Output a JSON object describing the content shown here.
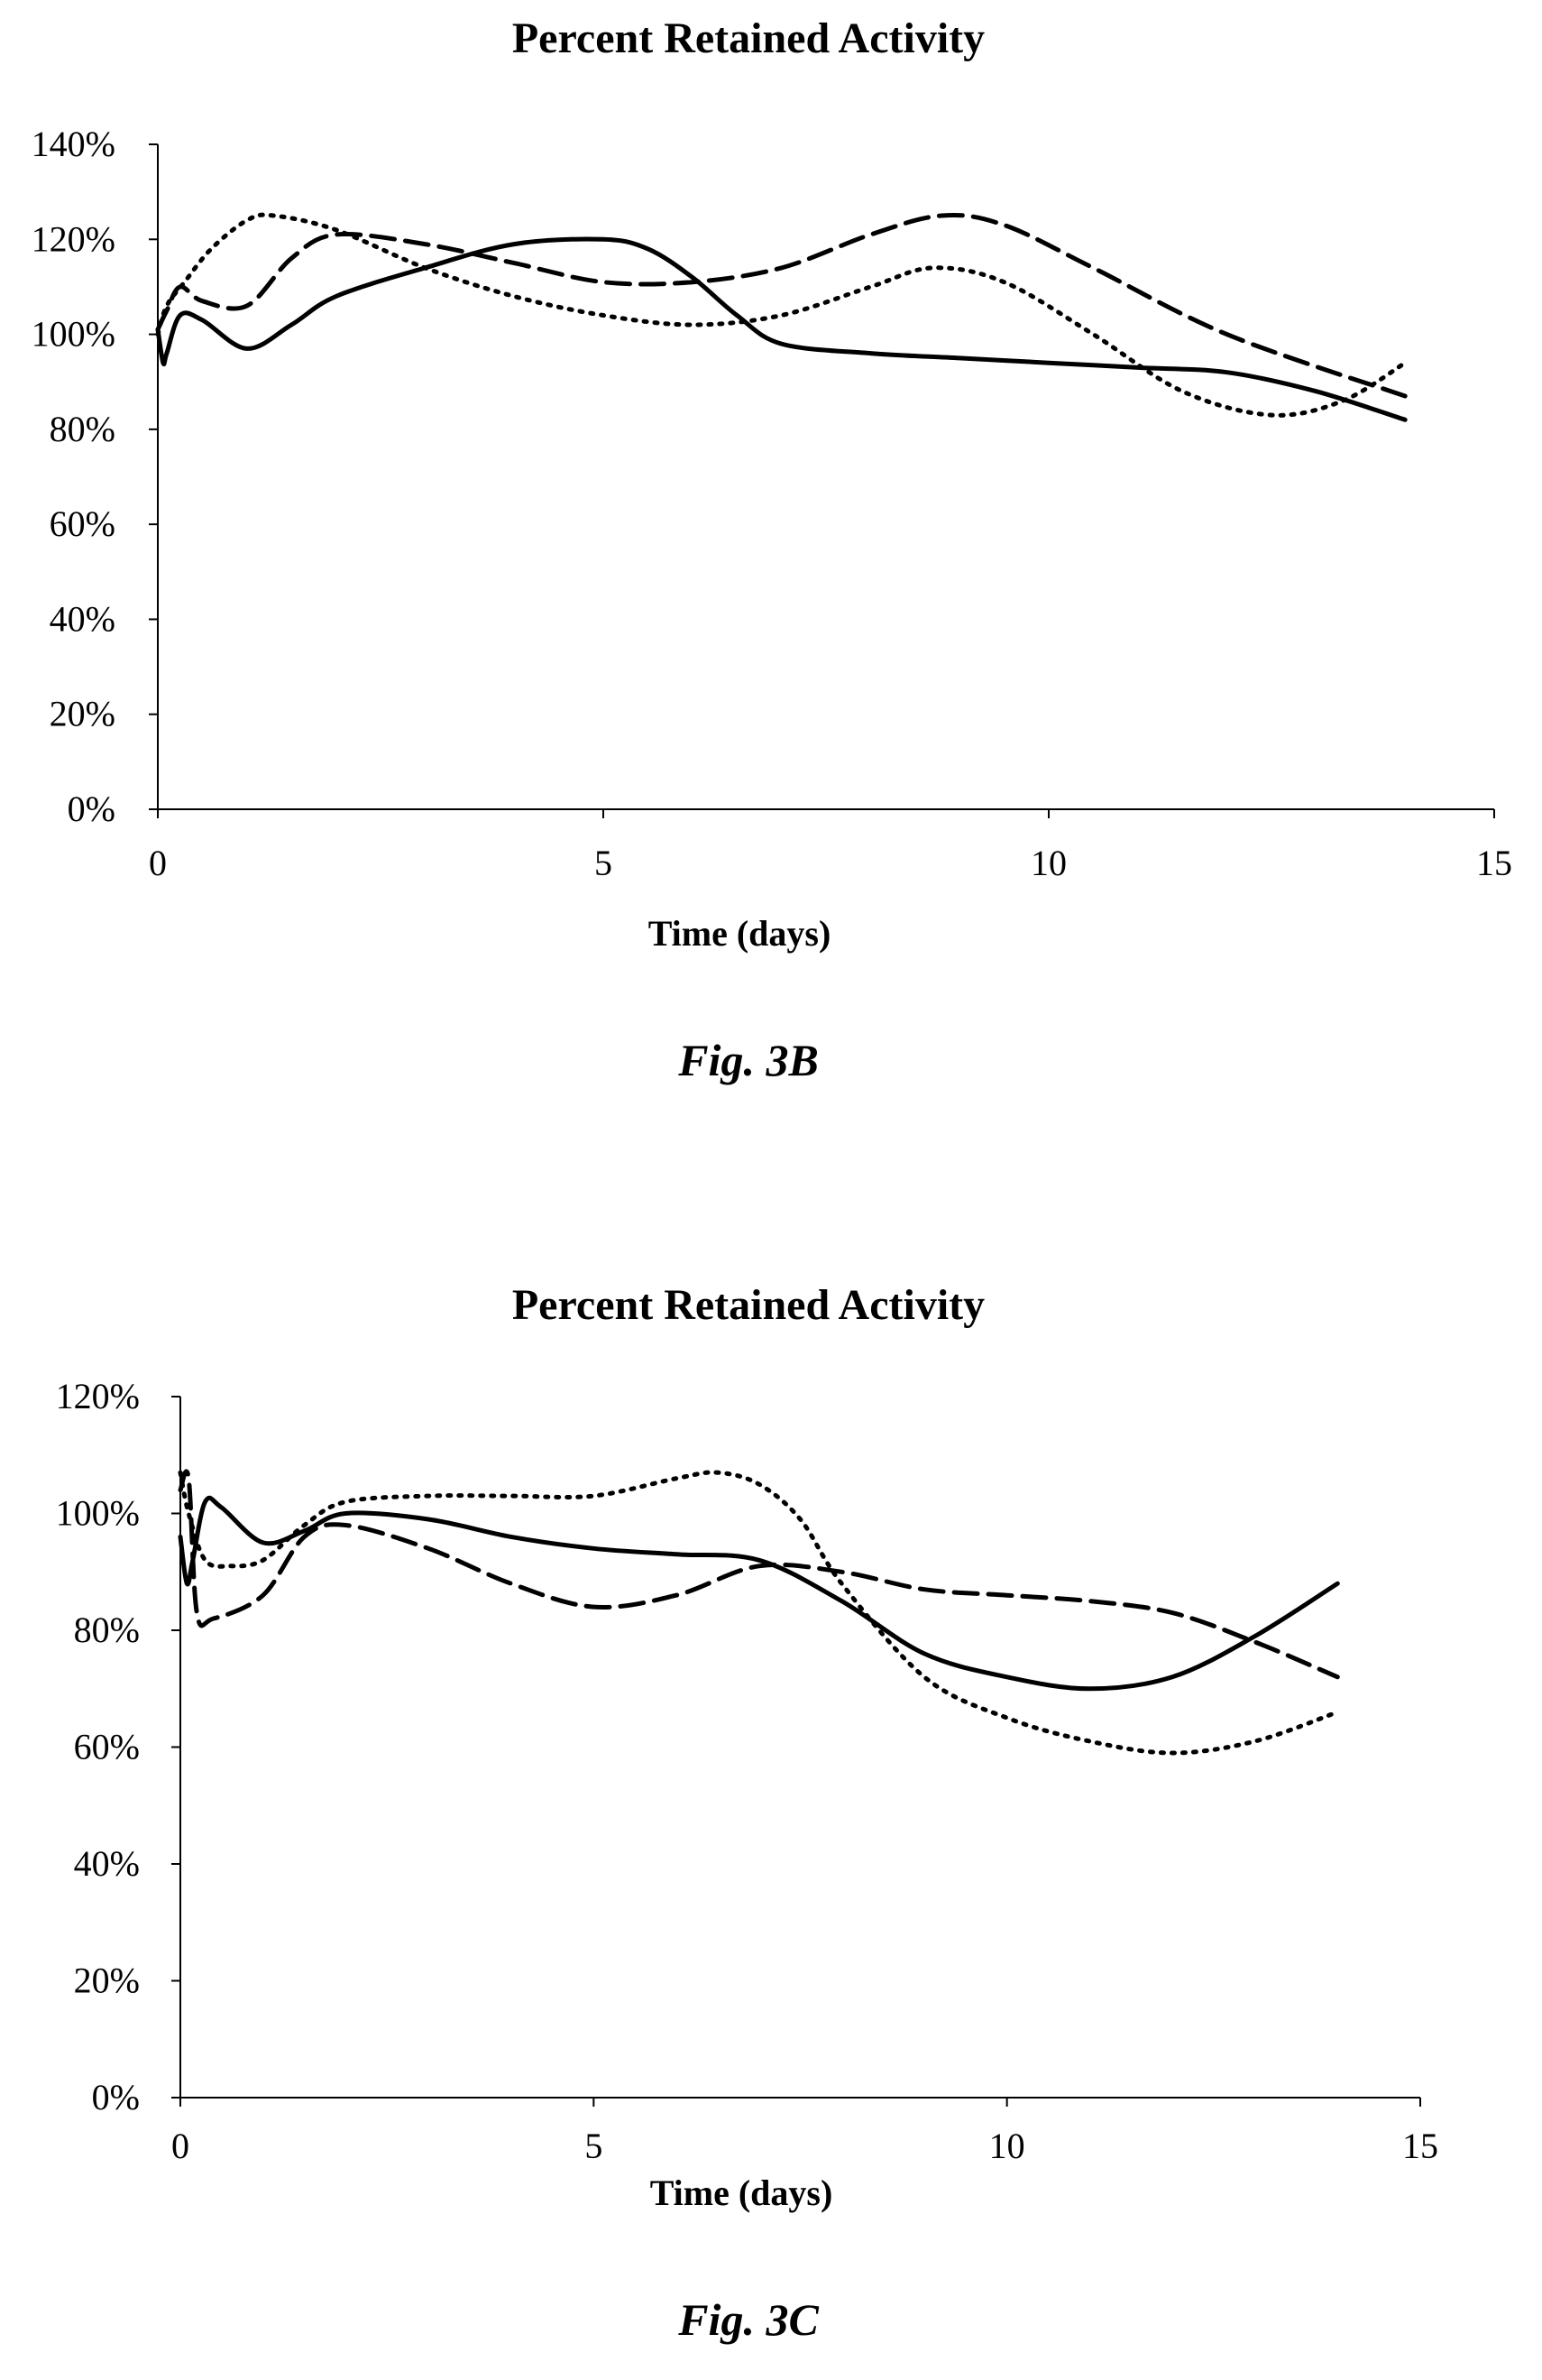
{
  "chart_data": [
    {
      "type": "line",
      "title": "Percent Retained Activity",
      "xlabel": "Time (days)",
      "ylabel": "",
      "caption": "Fig. 3B",
      "xlim": [
        0,
        15
      ],
      "ylim": [
        0,
        140
      ],
      "xticks": [
        "0",
        "5",
        "10",
        "15"
      ],
      "yticks": [
        "0%",
        "20%",
        "40%",
        "60%",
        "80%",
        "100%",
        "120%",
        "140%"
      ],
      "grid": false,
      "legend": "none",
      "series": [
        {
          "style": "solid",
          "x": [
            0,
            0.06,
            0.1,
            0.25,
            0.5,
            1,
            1.5,
            2,
            3,
            4,
            5,
            5.5,
            6,
            6.5,
            7,
            8,
            9,
            10,
            11,
            12,
            13,
            14
          ],
          "y": [
            101,
            94,
            96,
            104,
            103,
            97,
            102,
            108,
            114,
            119,
            120,
            118,
            112,
            104,
            98,
            96,
            95,
            94,
            93,
            92,
            88,
            82
          ]
        },
        {
          "style": "dashed",
          "x": [
            0,
            0.1,
            0.25,
            0.5,
            1,
            1.5,
            2,
            3,
            4,
            5,
            6,
            7,
            8,
            8.8,
            9.5,
            10.5,
            12,
            14
          ],
          "y": [
            101,
            105,
            110,
            107,
            106,
            116,
            121,
            119,
            115,
            111,
            111,
            114,
            121,
            125,
            123,
            114,
            100,
            87
          ]
        },
        {
          "style": "dotted",
          "x": [
            0,
            0.1,
            0.3,
            0.6,
            1,
            1.3,
            2,
            3,
            4,
            5,
            6,
            7,
            8,
            8.7,
            9.5,
            10.5,
            11.5,
            12.5,
            13.3,
            14
          ],
          "y": [
            100,
            106,
            111,
            118,
            124,
            125,
            122,
            114,
            108,
            104,
            102,
            104,
            110,
            114,
            111,
            100,
            88,
            83,
            86,
            94
          ]
        }
      ]
    },
    {
      "type": "line",
      "title": "Percent Retained Activity",
      "xlabel": "Time (days)",
      "ylabel": "",
      "caption": "Fig. 3C",
      "xlim": [
        0,
        15
      ],
      "ylim": [
        0,
        120
      ],
      "xticks": [
        "0",
        "5",
        "10",
        "15"
      ],
      "yticks": [
        "0%",
        "20%",
        "40%",
        "60%",
        "80%",
        "100%",
        "120%"
      ],
      "grid": false,
      "legend": "none",
      "series": [
        {
          "style": "solid",
          "x": [
            0,
            0.08,
            0.15,
            0.3,
            0.5,
            1,
            1.5,
            2,
            3,
            4,
            5,
            6,
            7,
            8,
            9,
            10,
            11,
            12,
            13,
            14
          ],
          "y": [
            96,
            88,
            92,
            102,
            101,
            95,
            97,
            100,
            99,
            96,
            94,
            93,
            92,
            85,
            76,
            72,
            70,
            72,
            79,
            88
          ]
        },
        {
          "style": "dashed",
          "x": [
            0,
            0.1,
            0.2,
            0.4,
            1,
            1.5,
            2,
            3,
            4,
            5,
            6,
            7,
            8,
            9,
            10,
            11,
            12,
            13,
            14
          ],
          "y": [
            104,
            106,
            83,
            82,
            86,
            96,
            98,
            94,
            88,
            84,
            86,
            91,
            90,
            87,
            86,
            85,
            83,
            78,
            72
          ]
        },
        {
          "style": "dotted",
          "x": [
            0,
            0.1,
            0.3,
            0.6,
            1,
            1.5,
            2,
            3,
            4,
            5,
            6,
            6.5,
            7,
            7.5,
            8,
            9,
            10,
            11,
            12,
            13,
            14
          ],
          "y": [
            107,
            100,
            92,
            91,
            92,
            98,
            102,
            103,
            103,
            103,
            106,
            107,
            105,
            99,
            88,
            72,
            65,
            61,
            59,
            61,
            66
          ]
        }
      ]
    }
  ]
}
